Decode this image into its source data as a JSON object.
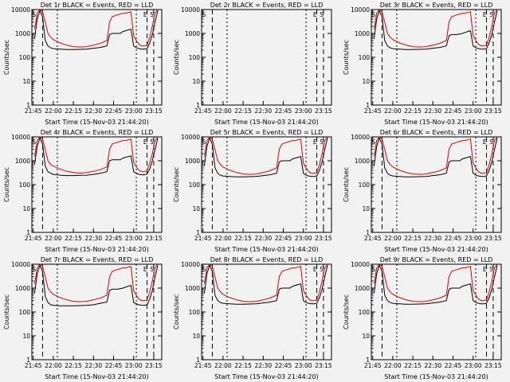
{
  "colors": {
    "events": "#000000",
    "lld": "#dd0000",
    "background": "#f2f2f2"
  },
  "x_tick_labels": [
    "21:45",
    "22:00",
    "22:15",
    "22:30",
    "22:45",
    "23:00",
    "23:15"
  ],
  "y_tick_labels": [
    "1",
    "10",
    "100",
    "1000",
    "10000"
  ],
  "chart_data": [
    {
      "type": "line",
      "title": "Det 1r BLACK = Events, RED = LLD",
      "xlabel": "Start Time (15-Nov-03 21:44:20)",
      "ylabel": "Counts/sec",
      "log_y": true,
      "ylim": [
        1,
        10000
      ],
      "xlim": [
        "21:44",
        "23:21"
      ],
      "x": [
        "21:46",
        "21:48",
        "21:50",
        "21:52",
        "21:54",
        "21:56",
        "21:58",
        "22:00",
        "22:05",
        "22:10",
        "22:15",
        "22:20",
        "22:25",
        "22:30",
        "22:35",
        "22:40",
        "22:42",
        "22:44",
        "22:46",
        "22:48",
        "22:50",
        "22:52",
        "22:54",
        "22:56",
        "22:58",
        "23:00",
        "23:02",
        "23:04",
        "23:06",
        "23:08",
        "23:10",
        "23:12",
        "23:14",
        "23:16",
        "23:18"
      ],
      "series": [
        {
          "values": [
            600,
            4000,
            9000,
            5000,
            500,
            300,
            250,
            230,
            220,
            210,
            210,
            215,
            220,
            240,
            260,
            300,
            900,
            1000,
            1000,
            1000,
            1000,
            1200,
            1300,
            1400,
            1500,
            300,
            250,
            230,
            220,
            220,
            230,
            400,
            900,
            3000,
            9000
          ]
        },
        {
          "values": [
            1500,
            7000,
            10000,
            8000,
            3000,
            1000,
            700,
            550,
            400,
            320,
            280,
            270,
            280,
            320,
            380,
            500,
            3000,
            5000,
            5500,
            6000,
            6500,
            7000,
            7000,
            7500,
            8000,
            800,
            500,
            350,
            300,
            300,
            320,
            700,
            2000,
            7000,
            10000
          ]
        }
      ],
      "markers": [
        "S",
        "E",
        "S"
      ]
    },
    {
      "type": "line",
      "title": "Det 2r BLACK = Events, RED = LLD",
      "xlabel": "Start Time (15-Nov-03 21:44:20)",
      "ylabel": "Counts/sec",
      "log_y": true,
      "ylim": [
        1,
        10000
      ],
      "xlim": [
        "21:44",
        "23:21"
      ],
      "x": [],
      "series": [],
      "markers": [
        "S",
        "E",
        "S"
      ]
    },
    {
      "type": "line",
      "title": "Det 3r BLACK = Events, RED = LLD",
      "xlabel": "Start Time (15-Nov-03 21:44:20)",
      "ylabel": "Counts/sec",
      "log_y": true,
      "ylim": [
        1,
        10000
      ],
      "xlim": [
        "21:44",
        "23:21"
      ],
      "x": [
        "21:46",
        "21:48",
        "21:50",
        "21:52",
        "21:54",
        "21:56",
        "21:58",
        "22:00",
        "22:05",
        "22:10",
        "22:15",
        "22:20",
        "22:25",
        "22:30",
        "22:35",
        "22:40",
        "22:42",
        "22:44",
        "22:46",
        "22:48",
        "22:50",
        "22:52",
        "22:54",
        "22:56",
        "22:58",
        "23:00",
        "23:02",
        "23:04",
        "23:06",
        "23:08",
        "23:10",
        "23:12",
        "23:14",
        "23:16",
        "23:18"
      ],
      "series": [
        {
          "values": [
            600,
            4000,
            9000,
            5000,
            500,
            300,
            250,
            230,
            220,
            210,
            210,
            215,
            220,
            240,
            260,
            300,
            800,
            900,
            900,
            900,
            950,
            1000,
            1100,
            1200,
            1300,
            300,
            250,
            230,
            220,
            220,
            230,
            400,
            900,
            3000,
            9000
          ]
        },
        {
          "values": [
            1500,
            7000,
            10000,
            8000,
            3000,
            1000,
            700,
            550,
            400,
            320,
            280,
            270,
            280,
            320,
            380,
            500,
            3000,
            5000,
            5500,
            6000,
            6500,
            7000,
            7000,
            7500,
            8000,
            800,
            500,
            350,
            300,
            300,
            320,
            700,
            2000,
            7000,
            10000
          ]
        }
      ],
      "markers": [
        "S",
        "E",
        "S"
      ]
    },
    {
      "type": "line",
      "title": "Det 4r BLACK = Events, RED = LLD",
      "xlabel": "Start Time (15-Nov-03 21:44:20)",
      "ylabel": "Counts/sec",
      "log_y": true,
      "ylim": [
        1,
        10000
      ],
      "xlim": [
        "21:44",
        "23:21"
      ],
      "x": [
        "21:46",
        "21:48",
        "21:50",
        "21:52",
        "21:54",
        "21:56",
        "21:58",
        "22:00",
        "22:05",
        "22:10",
        "22:15",
        "22:20",
        "22:25",
        "22:30",
        "22:35",
        "22:40",
        "22:42",
        "22:44",
        "22:46",
        "22:48",
        "22:50",
        "22:52",
        "22:54",
        "22:56",
        "22:58",
        "23:00",
        "23:02",
        "23:04",
        "23:06",
        "23:08",
        "23:10",
        "23:12",
        "23:14",
        "23:16",
        "23:18"
      ],
      "series": [
        {
          "values": [
            700,
            4000,
            9000,
            5000,
            600,
            350,
            300,
            270,
            250,
            240,
            240,
            245,
            250,
            270,
            300,
            350,
            1000,
            1100,
            1100,
            1100,
            1100,
            1300,
            1400,
            1500,
            1600,
            350,
            300,
            270,
            260,
            260,
            280,
            450,
            1000,
            3000,
            9000
          ]
        },
        {
          "values": [
            1500,
            7000,
            10000,
            8000,
            3000,
            1000,
            700,
            600,
            450,
            360,
            320,
            300,
            320,
            360,
            420,
            550,
            3000,
            5000,
            5500,
            6000,
            6500,
            7000,
            7000,
            7500,
            8000,
            900,
            550,
            400,
            350,
            350,
            380,
            800,
            2000,
            7000,
            10000
          ]
        }
      ],
      "markers": [
        "S",
        "E",
        "S"
      ]
    },
    {
      "type": "line",
      "title": "Det 5r BLACK = Events, RED = LLD",
      "xlabel": "Start Time (15-Nov-03 21:44:20)",
      "ylabel": "Counts/sec",
      "log_y": true,
      "ylim": [
        1,
        10000
      ],
      "xlim": [
        "21:44",
        "23:21"
      ],
      "x": [
        "21:46",
        "21:48",
        "21:50",
        "21:52",
        "21:54",
        "21:56",
        "21:58",
        "22:00",
        "22:05",
        "22:10",
        "22:15",
        "22:20",
        "22:25",
        "22:30",
        "22:35",
        "22:40",
        "22:42",
        "22:44",
        "22:46",
        "22:48",
        "22:50",
        "22:52",
        "22:54",
        "22:56",
        "22:58",
        "23:00",
        "23:02",
        "23:04",
        "23:06",
        "23:08",
        "23:10",
        "23:12",
        "23:14",
        "23:16",
        "23:18"
      ],
      "series": [
        {
          "values": [
            600,
            4000,
            9000,
            5000,
            500,
            300,
            250,
            230,
            220,
            210,
            210,
            215,
            220,
            240,
            260,
            300,
            900,
            1000,
            1000,
            1000,
            1000,
            1200,
            1300,
            1400,
            1500,
            300,
            250,
            230,
            220,
            220,
            230,
            400,
            900,
            3000,
            9000
          ]
        },
        {
          "values": [
            1500,
            7000,
            10000,
            8000,
            3000,
            1000,
            700,
            550,
            400,
            320,
            280,
            270,
            280,
            320,
            380,
            500,
            3000,
            5000,
            5500,
            6000,
            6500,
            7000,
            7000,
            7500,
            8000,
            800,
            500,
            350,
            300,
            300,
            320,
            700,
            2000,
            7000,
            10000
          ]
        }
      ],
      "markers": [
        "S",
        "E",
        "S"
      ]
    },
    {
      "type": "line",
      "title": "Det 6r BLACK = Events, RED = LLD",
      "xlabel": "Start Time (15-Nov-03 21:44:20)",
      "ylabel": "Counts/sec",
      "log_y": true,
      "ylim": [
        1,
        10000
      ],
      "xlim": [
        "21:44",
        "23:21"
      ],
      "x": [
        "21:46",
        "21:48",
        "21:50",
        "21:52",
        "21:54",
        "21:56",
        "21:58",
        "22:00",
        "22:05",
        "22:10",
        "22:15",
        "22:20",
        "22:25",
        "22:30",
        "22:35",
        "22:40",
        "22:42",
        "22:44",
        "22:46",
        "22:48",
        "22:50",
        "22:52",
        "22:54",
        "22:56",
        "22:58",
        "23:00",
        "23:02",
        "23:04",
        "23:06",
        "23:08",
        "23:10",
        "23:12",
        "23:14",
        "23:16",
        "23:18"
      ],
      "series": [
        {
          "values": [
            600,
            4000,
            9000,
            5000,
            500,
            300,
            250,
            230,
            220,
            210,
            210,
            215,
            220,
            240,
            260,
            300,
            900,
            1000,
            1000,
            1000,
            1000,
            1200,
            1300,
            1400,
            1500,
            300,
            250,
            230,
            220,
            220,
            230,
            400,
            900,
            3000,
            9000
          ]
        },
        {
          "values": [
            1500,
            7000,
            10000,
            8000,
            3000,
            1000,
            700,
            550,
            400,
            320,
            280,
            270,
            280,
            320,
            380,
            500,
            3000,
            5000,
            5500,
            6000,
            6500,
            7000,
            7000,
            7500,
            8000,
            800,
            500,
            350,
            300,
            300,
            320,
            700,
            2000,
            7000,
            10000
          ]
        }
      ],
      "markers": [
        "S",
        "E",
        "S"
      ]
    },
    {
      "type": "line",
      "title": "Det 7r BLACK = Events, RED = LLD",
      "xlabel": "Start Time (15-Nov-03 21:44:20)",
      "ylabel": "Counts/sec",
      "log_y": true,
      "ylim": [
        1,
        10000
      ],
      "xlim": [
        "21:44",
        "23:21"
      ],
      "x": [
        "21:46",
        "21:48",
        "21:50",
        "21:52",
        "21:54",
        "21:56",
        "21:58",
        "22:00",
        "22:05",
        "22:10",
        "22:15",
        "22:20",
        "22:25",
        "22:30",
        "22:35",
        "22:40",
        "22:42",
        "22:44",
        "22:46",
        "22:48",
        "22:50",
        "22:52",
        "22:54",
        "22:56",
        "22:58",
        "23:00",
        "23:02",
        "23:04",
        "23:06",
        "23:08",
        "23:10",
        "23:12",
        "23:14",
        "23:16",
        "23:18"
      ],
      "series": [
        {
          "values": [
            600,
            4000,
            9000,
            5000,
            450,
            250,
            200,
            190,
            180,
            180,
            180,
            185,
            190,
            200,
            230,
            260,
            800,
            900,
            900,
            900,
            950,
            1000,
            1100,
            1200,
            1300,
            250,
            220,
            200,
            190,
            190,
            200,
            350,
            800,
            3000,
            9000
          ]
        },
        {
          "values": [
            1500,
            7000,
            10000,
            8000,
            3000,
            1000,
            700,
            550,
            400,
            320,
            280,
            270,
            280,
            320,
            380,
            500,
            3000,
            5000,
            5500,
            6000,
            6500,
            7000,
            7000,
            7500,
            8000,
            800,
            500,
            350,
            300,
            300,
            320,
            700,
            2000,
            7000,
            10000
          ]
        }
      ],
      "markers": [
        "S",
        "E",
        "S"
      ]
    },
    {
      "type": "line",
      "title": "Det 8r BLACK = Events, RED = LLD",
      "xlabel": "Start Time (15-Nov-03 21:44:20)",
      "ylabel": "Counts/sec",
      "log_y": true,
      "ylim": [
        1,
        10000
      ],
      "xlim": [
        "21:44",
        "23:21"
      ],
      "x": [
        "21:46",
        "21:48",
        "21:50",
        "21:52",
        "21:54",
        "21:56",
        "21:58",
        "22:00",
        "22:05",
        "22:10",
        "22:15",
        "22:20",
        "22:25",
        "22:30",
        "22:35",
        "22:40",
        "22:42",
        "22:44",
        "22:46",
        "22:48",
        "22:50",
        "22:52",
        "22:54",
        "22:56",
        "22:58",
        "23:00",
        "23:02",
        "23:04",
        "23:06",
        "23:08",
        "23:10",
        "23:12",
        "23:14",
        "23:16",
        "23:18"
      ],
      "series": [
        {
          "values": [
            600,
            4000,
            9000,
            5000,
            500,
            300,
            250,
            230,
            220,
            210,
            210,
            215,
            220,
            240,
            260,
            300,
            900,
            1000,
            1000,
            1000,
            1000,
            1200,
            1300,
            1400,
            1500,
            300,
            250,
            230,
            220,
            220,
            230,
            400,
            900,
            3000,
            9000
          ]
        },
        {
          "values": [
            1500,
            7000,
            10000,
            8000,
            3000,
            1000,
            700,
            550,
            400,
            320,
            280,
            270,
            280,
            320,
            380,
            500,
            3000,
            5000,
            5500,
            6000,
            6500,
            7000,
            7000,
            7500,
            8000,
            800,
            500,
            350,
            300,
            300,
            320,
            700,
            2000,
            7000,
            10000
          ]
        }
      ],
      "markers": [
        "S",
        "E",
        "S"
      ]
    },
    {
      "type": "line",
      "title": "Det 9r BLACK = Events, RED = LLD",
      "xlabel": "Start Time (15-Nov-03 21:44:20)",
      "ylabel": "Counts/sec",
      "log_y": true,
      "ylim": [
        1,
        10000
      ],
      "xlim": [
        "21:44",
        "23:21"
      ],
      "x": [
        "21:46",
        "21:48",
        "21:50",
        "21:52",
        "21:54",
        "21:56",
        "21:58",
        "22:00",
        "22:05",
        "22:10",
        "22:15",
        "22:20",
        "22:25",
        "22:30",
        "22:35",
        "22:40",
        "22:42",
        "22:44",
        "22:46",
        "22:48",
        "22:50",
        "22:52",
        "22:54",
        "22:56",
        "22:58",
        "23:00",
        "23:02",
        "23:04",
        "23:06",
        "23:08",
        "23:10",
        "23:12",
        "23:14",
        "23:16",
        "23:18"
      ],
      "series": [
        {
          "values": [
            600,
            4000,
            9000,
            5000,
            500,
            300,
            250,
            230,
            220,
            210,
            210,
            215,
            220,
            240,
            260,
            300,
            900,
            1000,
            1000,
            1000,
            1000,
            1200,
            1300,
            1400,
            1500,
            300,
            250,
            230,
            220,
            220,
            230,
            400,
            900,
            3000,
            9000
          ]
        },
        {
          "values": [
            1500,
            7000,
            10000,
            8000,
            3000,
            1000,
            700,
            550,
            400,
            320,
            280,
            270,
            280,
            320,
            380,
            500,
            3000,
            5000,
            5500,
            6000,
            6500,
            7000,
            7000,
            7500,
            8000,
            800,
            500,
            350,
            300,
            300,
            320,
            700,
            2000,
            7000,
            10000
          ]
        }
      ],
      "markers": [
        "S",
        "E",
        "S"
      ]
    }
  ]
}
